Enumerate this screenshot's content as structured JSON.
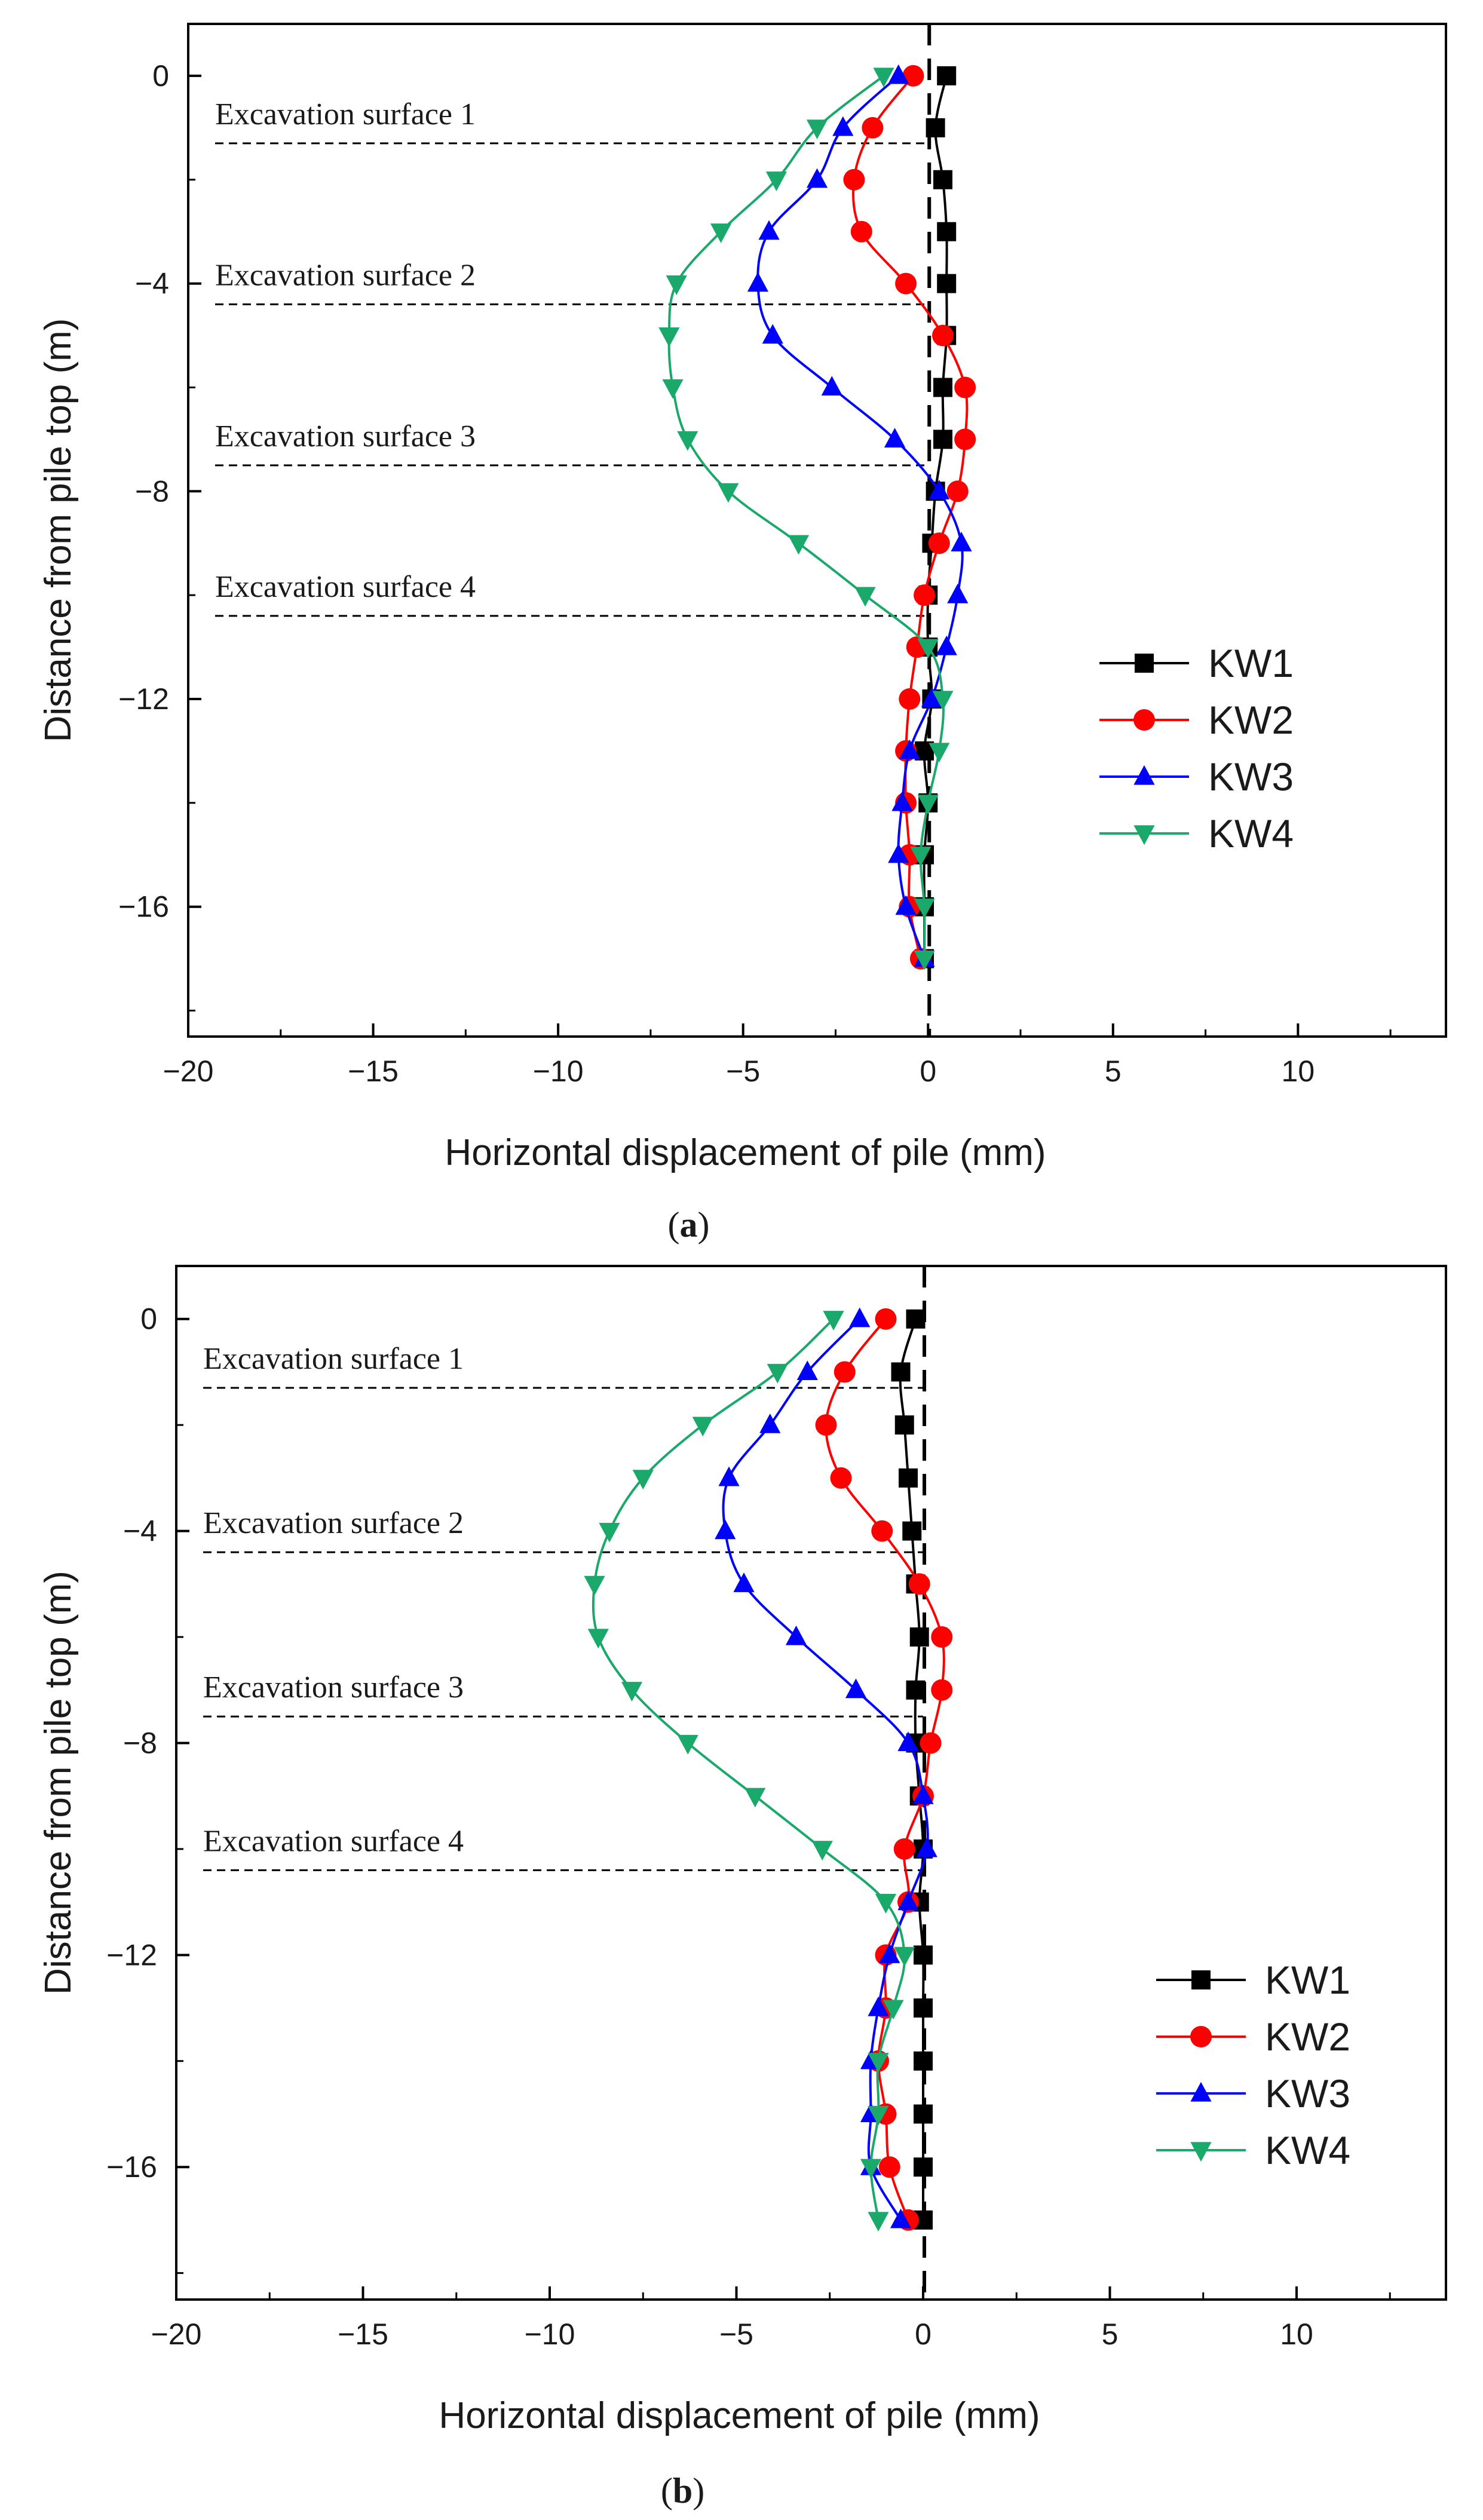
{
  "colors": {
    "KW1": "#000000",
    "KW2": "#ff0000",
    "KW3": "#0000ff",
    "KW4": "#1aa86b",
    "axis": "#000000"
  },
  "chart_data": [
    {
      "id": "a",
      "type": "line",
      "panel_label_open": "(",
      "panel_label": "a",
      "panel_label_close": ")",
      "xlabel": "Horizontal displacement of pile (mm)",
      "ylabel": "Distance from pile top (m)",
      "xlim": [
        -20,
        14
      ],
      "ylim": [
        -18.5,
        1
      ],
      "xticks": [
        -20,
        -15,
        -10,
        -5,
        0,
        5,
        10
      ],
      "xtick_labels": [
        "−20",
        "−15",
        "−10",
        "−5",
        "0",
        "5",
        "10"
      ],
      "yticks": [
        0,
        -4,
        -8,
        -12,
        -16
      ],
      "ytick_labels": [
        "0",
        "−4",
        "−8",
        "−12",
        "−16"
      ],
      "excavation_surfaces": [
        {
          "label": "Excavation surface 1",
          "depth": -1.3
        },
        {
          "label": "Excavation surface 2",
          "depth": -4.4
        },
        {
          "label": "Excavation surface 3",
          "depth": -7.5
        },
        {
          "label": "Excavation surface 4",
          "depth": -10.4
        }
      ],
      "depths": [
        0,
        -1,
        -2,
        -3,
        -4,
        -5,
        -6,
        -7,
        -8,
        -9,
        -10,
        -11,
        -12,
        -13,
        -14,
        -15,
        -16,
        -17
      ],
      "legend_position": "right-middle",
      "series": [
        {
          "name": "KW1",
          "marker": "square",
          "values": [
            0.5,
            0.2,
            0.4,
            0.5,
            0.5,
            0.5,
            0.4,
            0.4,
            0.2,
            0.1,
            0.0,
            0.0,
            0.1,
            -0.1,
            0.0,
            -0.1,
            -0.1,
            -0.1
          ]
        },
        {
          "name": "KW2",
          "marker": "circle",
          "values": [
            -0.4,
            -1.5,
            -2.0,
            -1.8,
            -0.6,
            0.4,
            1.0,
            1.0,
            0.8,
            0.3,
            -0.1,
            -0.3,
            -0.5,
            -0.6,
            -0.6,
            -0.5,
            -0.5,
            -0.2
          ]
        },
        {
          "name": "KW3",
          "marker": "triangle-up",
          "values": [
            -0.8,
            -2.3,
            -3.0,
            -4.3,
            -4.6,
            -4.2,
            -2.6,
            -0.9,
            0.3,
            0.9,
            0.8,
            0.5,
            0.1,
            -0.5,
            -0.7,
            -0.8,
            -0.6,
            -0.1
          ]
        },
        {
          "name": "KW4",
          "marker": "triangle-down",
          "values": [
            -1.2,
            -3.0,
            -4.1,
            -5.6,
            -6.8,
            -7.0,
            -6.9,
            -6.5,
            -5.4,
            -3.5,
            -1.7,
            0.0,
            0.4,
            0.3,
            0.0,
            -0.2,
            -0.1,
            -0.1
          ]
        }
      ]
    },
    {
      "id": "b",
      "type": "line",
      "panel_label_open": "(",
      "panel_label": "b",
      "panel_label_close": ")",
      "xlabel": "Horizontal displacement of pile (mm)",
      "ylabel": "Distance from pile top (m)",
      "xlim": [
        -20,
        14
      ],
      "ylim": [
        -18.5,
        1
      ],
      "xticks": [
        -20,
        -15,
        -10,
        -5,
        0,
        5,
        10
      ],
      "xtick_labels": [
        "−20",
        "−15",
        "−10",
        "−5",
        "0",
        "5",
        "10"
      ],
      "yticks": [
        0,
        -4,
        -8,
        -12,
        -16
      ],
      "ytick_labels": [
        "0",
        "−4",
        "−8",
        "−12",
        "−16"
      ],
      "excavation_surfaces": [
        {
          "label": "Excavation surface 1",
          "depth": -1.3
        },
        {
          "label": "Excavation surface 2",
          "depth": -4.4
        },
        {
          "label": "Excavation surface 3",
          "depth": -7.5
        },
        {
          "label": "Excavation surface 4",
          "depth": -10.4
        }
      ],
      "depths": [
        0,
        -1,
        -2,
        -3,
        -4,
        -5,
        -6,
        -7,
        -8,
        -9,
        -10,
        -11,
        -12,
        -13,
        -14,
        -15,
        -16,
        -17
      ],
      "legend_position": "bottom-right",
      "series": [
        {
          "name": "KW1",
          "marker": "square",
          "values": [
            -0.2,
            -0.6,
            -0.5,
            -0.4,
            -0.3,
            -0.2,
            -0.1,
            -0.2,
            -0.2,
            -0.1,
            0.0,
            -0.1,
            0.0,
            0.0,
            0.0,
            0.0,
            0.0,
            0.0
          ]
        },
        {
          "name": "KW2",
          "marker": "circle",
          "values": [
            -1.0,
            -2.1,
            -2.6,
            -2.2,
            -1.1,
            -0.1,
            0.5,
            0.5,
            0.2,
            0.0,
            -0.5,
            -0.4,
            -1.0,
            -1.0,
            -1.2,
            -1.0,
            -0.9,
            -0.4
          ]
        },
        {
          "name": "KW3",
          "marker": "triangle-up",
          "values": [
            -1.7,
            -3.1,
            -4.1,
            -5.2,
            -5.3,
            -4.8,
            -3.4,
            -1.8,
            -0.4,
            0.0,
            0.1,
            -0.4,
            -0.9,
            -1.2,
            -1.4,
            -1.4,
            -1.4,
            -0.6
          ]
        },
        {
          "name": "KW4",
          "marker": "triangle-down",
          "values": [
            -2.4,
            -3.9,
            -5.9,
            -7.5,
            -8.4,
            -8.8,
            -8.7,
            -7.8,
            -6.3,
            -4.5,
            -2.7,
            -1.0,
            -0.5,
            -0.8,
            -1.2,
            -1.2,
            -1.4,
            -1.2
          ]
        }
      ]
    }
  ]
}
